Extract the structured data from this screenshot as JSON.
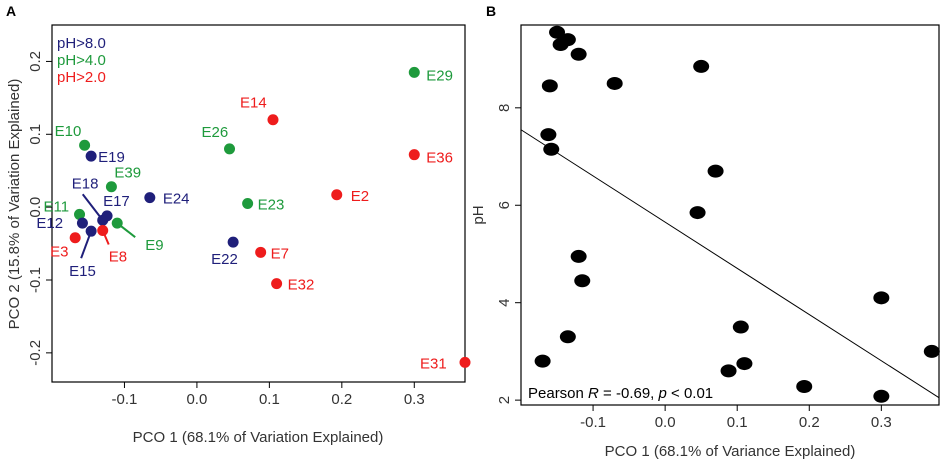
{
  "colors": {
    "ph_high": "#1f1f7a",
    "ph_mid": "#1e9a3c",
    "ph_low": "#ee1c1c",
    "black": "#000000"
  },
  "chart_data": [
    {
      "panel": "A",
      "type": "scatter",
      "xlabel": "PCO 1 (68.1% of Variation Explained)",
      "ylabel": "PCO 2 (15.8% of Variation Explained)",
      "xlim": [
        -0.2,
        0.37
      ],
      "ylim": [
        -0.24,
        0.25
      ],
      "xticks": [
        -0.1,
        0.0,
        0.1,
        0.2,
        0.3
      ],
      "xtick_labels": [
        "-0.1",
        "0.0",
        "0.1",
        "0.2",
        "0.3"
      ],
      "yticks": [
        -0.2,
        -0.1,
        0.0,
        0.1,
        0.2
      ],
      "ytick_labels": [
        "-0.2",
        "-0.1",
        "0.0",
        "0.1",
        "0.2"
      ],
      "legend": [
        {
          "label": "pH>8.0",
          "group": "high"
        },
        {
          "label": "pH>4.0",
          "group": "mid"
        },
        {
          "label": "pH>2.0",
          "group": "low"
        }
      ],
      "points": [
        {
          "label": "E29",
          "x": 0.3,
          "y": 0.185,
          "group": "mid"
        },
        {
          "label": "E14",
          "x": 0.105,
          "y": 0.12,
          "group": "low"
        },
        {
          "label": "E36",
          "x": 0.3,
          "y": 0.072,
          "group": "low"
        },
        {
          "label": "E26",
          "x": 0.045,
          "y": 0.08,
          "group": "mid"
        },
        {
          "label": "E10",
          "x": -0.155,
          "y": 0.085,
          "group": "mid"
        },
        {
          "label": "E19",
          "x": -0.146,
          "y": 0.07,
          "group": "high"
        },
        {
          "label": "E39",
          "x": -0.118,
          "y": 0.028,
          "group": "mid"
        },
        {
          "label": "E24",
          "x": -0.065,
          "y": 0.013,
          "group": "high"
        },
        {
          "label": "E2",
          "x": 0.193,
          "y": 0.017,
          "group": "low"
        },
        {
          "label": "E23",
          "x": 0.07,
          "y": 0.005,
          "group": "mid"
        },
        {
          "label": "E11",
          "x": -0.162,
          "y": -0.01,
          "group": "mid"
        },
        {
          "label": "E18",
          "x": -0.13,
          "y": -0.018,
          "group": "high"
        },
        {
          "label": "E17",
          "x": -0.124,
          "y": -0.012,
          "group": "high"
        },
        {
          "label": "E12",
          "x": -0.158,
          "y": -0.022,
          "group": "high"
        },
        {
          "label": "E15",
          "x": -0.146,
          "y": -0.033,
          "group": "high"
        },
        {
          "label": "E3",
          "x": -0.168,
          "y": -0.042,
          "group": "low"
        },
        {
          "label": "E8",
          "x": -0.13,
          "y": -0.032,
          "group": "low"
        },
        {
          "label": "E9",
          "x": -0.11,
          "y": -0.022,
          "group": "mid"
        },
        {
          "label": "E22",
          "x": 0.05,
          "y": -0.048,
          "group": "high"
        },
        {
          "label": "E7",
          "x": 0.088,
          "y": -0.062,
          "group": "low"
        },
        {
          "label": "E32",
          "x": 0.11,
          "y": -0.105,
          "group": "low"
        },
        {
          "label": "E31",
          "x": 0.37,
          "y": -0.213,
          "group": "low"
        }
      ]
    },
    {
      "panel": "B",
      "type": "scatter",
      "xlabel": "PCO 1 (68.1% of Variance Explained)",
      "ylabel": "pH",
      "xlim": [
        -0.2,
        0.38
      ],
      "ylim": [
        1.9,
        9.7
      ],
      "xticks": [
        -0.1,
        0.0,
        0.1,
        0.2,
        0.3
      ],
      "xtick_labels": [
        "-0.1",
        "0.0",
        "0.1",
        "0.2",
        "0.3"
      ],
      "yticks": [
        2,
        4,
        6,
        8
      ],
      "ytick_labels": [
        "2",
        "4",
        "6",
        "8"
      ],
      "annotation": {
        "prefix": "Pearson ",
        "r_symbol": "R",
        "middle": " = -0.69, ",
        "p_symbol": "p",
        "suffix": " < 0.01"
      },
      "fit_line": {
        "x": [
          -0.2,
          0.38
        ],
        "y": [
          7.55,
          2.05
        ]
      },
      "points": [
        {
          "x": -0.15,
          "y": 9.55
        },
        {
          "x": -0.145,
          "y": 9.3
        },
        {
          "x": -0.135,
          "y": 9.4
        },
        {
          "x": -0.12,
          "y": 9.1
        },
        {
          "x": -0.16,
          "y": 8.45
        },
        {
          "x": -0.07,
          "y": 8.5
        },
        {
          "x": 0.05,
          "y": 8.85
        },
        {
          "x": -0.162,
          "y": 7.45
        },
        {
          "x": -0.158,
          "y": 7.15
        },
        {
          "x": 0.07,
          "y": 6.7
        },
        {
          "x": 0.045,
          "y": 5.85
        },
        {
          "x": -0.12,
          "y": 4.95
        },
        {
          "x": -0.115,
          "y": 4.45
        },
        {
          "x": 0.3,
          "y": 4.1
        },
        {
          "x": 0.105,
          "y": 3.5
        },
        {
          "x": -0.135,
          "y": 3.3
        },
        {
          "x": 0.37,
          "y": 3.0
        },
        {
          "x": -0.17,
          "y": 2.8
        },
        {
          "x": 0.11,
          "y": 2.75
        },
        {
          "x": 0.088,
          "y": 2.6
        },
        {
          "x": 0.193,
          "y": 2.28
        },
        {
          "x": 0.3,
          "y": 2.08
        }
      ]
    }
  ]
}
